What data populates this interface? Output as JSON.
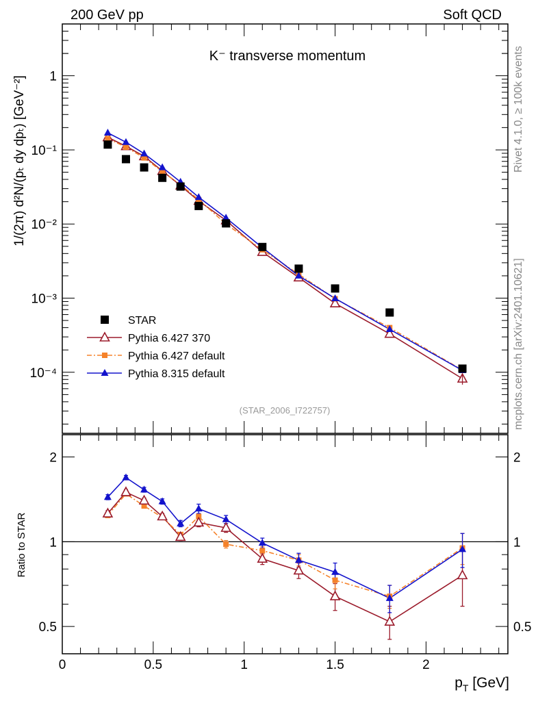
{
  "header": {
    "left": "200 GeV pp",
    "right": "Soft QCD",
    "side_top": "Rivet 4.1.0, ≥ 100k events",
    "side_bottom": "mcplots.cern.ch [arXiv:2401.10621]"
  },
  "colors": {
    "data": "#000000",
    "p6_370": "#9b1b2b",
    "p6_default": "#f5822a",
    "p8": "#1313cc"
  },
  "chart_data": [
    {
      "type": "scatter",
      "title": "K⁻ transverse momentum",
      "ylabel": "1/(2π)  d²N/(pₜ dy dpₜ) [GeV⁻²]",
      "xlabel": "",
      "yscale": "log",
      "ylim": [
        1.5e-05,
        5
      ],
      "xlim": [
        0,
        2.45
      ],
      "watermark": "(STAR_2006_I722757)",
      "y_tick_labels": [
        "1",
        "10⁻¹",
        "10⁻²",
        "10⁻³",
        "10⁻⁴"
      ],
      "x": [
        0.25,
        0.35,
        0.45,
        0.55,
        0.65,
        0.75,
        0.9,
        1.1,
        1.3,
        1.5,
        1.8,
        2.2
      ],
      "series": [
        {
          "name": "STAR",
          "key": "data",
          "marker": "square",
          "values": [
            0.118,
            0.075,
            0.058,
            0.042,
            0.032,
            0.0175,
            0.0102,
            0.0049,
            0.0025,
            0.00135,
            0.00064,
            0.000112
          ]
        },
        {
          "name": "Pythia 6.427 370",
          "key": "p6_370",
          "marker": "open-triangle",
          "values": [
            0.148,
            0.112,
            0.082,
            0.052,
            0.033,
            0.0205,
            0.0112,
            0.0042,
            0.0019,
            0.00085,
            0.00033,
            8.2e-05
          ]
        },
        {
          "name": "Pythia 6.427 default",
          "key": "p6_default",
          "marker": "small-square",
          "values": [
            0.142,
            0.109,
            0.078,
            0.051,
            0.034,
            0.0213,
            0.01,
            0.0045,
            0.0021,
            0.00098,
            0.0004,
            0.000107
          ]
        },
        {
          "name": "Pythia 8.315 default",
          "key": "p8",
          "marker": "triangle",
          "values": [
            0.17,
            0.127,
            0.089,
            0.058,
            0.037,
            0.023,
            0.0121,
            0.0048,
            0.002,
            0.00099,
            0.00038,
            0.000106
          ]
        }
      ]
    },
    {
      "type": "line",
      "title": "",
      "ylabel": "Ratio to STAR",
      "xlabel": "p_T [GeV]",
      "yscale": "log",
      "ylim": [
        0.4,
        2.4
      ],
      "xlim": [
        0,
        2.45
      ],
      "x_tick_labels": [
        "0",
        "0.5",
        "1",
        "1.5",
        "2"
      ],
      "y_tick_labels": [
        "0.5",
        "1",
        "2"
      ],
      "x": [
        0.25,
        0.35,
        0.45,
        0.55,
        0.65,
        0.75,
        0.9,
        1.1,
        1.3,
        1.5,
        1.8,
        2.2
      ],
      "series": [
        {
          "name": "Pythia 6.427 370",
          "key": "p6_370",
          "values": [
            1.26,
            1.5,
            1.4,
            1.23,
            1.04,
            1.17,
            1.12,
            0.87,
            0.79,
            0.64,
            0.52,
            0.76
          ],
          "errors": [
            0.03,
            0.03,
            0.03,
            0.03,
            0.03,
            0.04,
            0.04,
            0.04,
            0.05,
            0.07,
            0.07,
            0.17
          ]
        },
        {
          "name": "Pythia 6.427 default",
          "key": "p6_default",
          "values": [
            1.24,
            1.48,
            1.34,
            1.22,
            1.06,
            1.23,
            0.98,
            0.93,
            0.86,
            0.73,
            0.64,
            0.95
          ],
          "errors": [
            0.02,
            0.02,
            0.02,
            0.02,
            0.02,
            0.03,
            0.03,
            0.03,
            0.04,
            0.05,
            0.06,
            0.12
          ]
        },
        {
          "name": "Pythia 8.315 default",
          "key": "p8",
          "values": [
            1.44,
            1.69,
            1.53,
            1.39,
            1.16,
            1.31,
            1.2,
            0.99,
            0.86,
            0.78,
            0.63,
            0.94
          ],
          "errors": [
            0.03,
            0.03,
            0.03,
            0.03,
            0.03,
            0.05,
            0.04,
            0.04,
            0.05,
            0.06,
            0.07,
            0.13
          ]
        }
      ]
    }
  ]
}
